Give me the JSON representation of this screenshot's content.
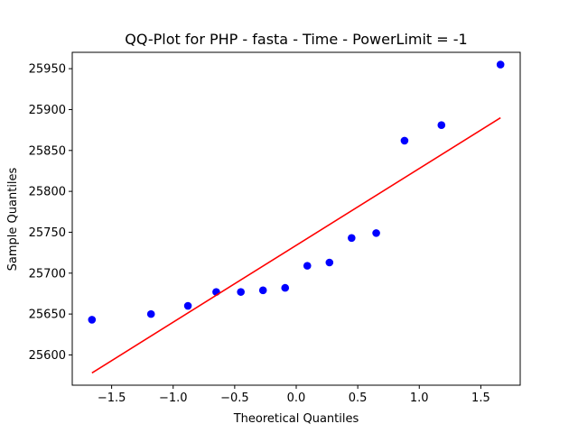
{
  "chart_data": {
    "type": "scatter",
    "title": "QQ-Plot for PHP - fasta - Time - PowerLimit = -1",
    "xlabel": "Theoretical Quantiles",
    "ylabel": "Sample Quantiles",
    "xlim": [
      -1.82,
      1.82
    ],
    "ylim": [
      25563,
      25970
    ],
    "xticks": [
      -1.5,
      -1.0,
      -0.5,
      0.0,
      0.5,
      1.0,
      1.5
    ],
    "xtick_labels": [
      "−1.5",
      "−1.0",
      "−0.5",
      "0.0",
      "0.5",
      "1.0",
      "1.5"
    ],
    "yticks": [
      25600,
      25650,
      25700,
      25750,
      25800,
      25850,
      25900,
      25950
    ],
    "ytick_labels": [
      "25600",
      "25650",
      "25700",
      "25750",
      "25800",
      "25850",
      "25900",
      "25950"
    ],
    "grid": false,
    "points": {
      "color": "#0000ff",
      "x": [
        -1.66,
        -1.18,
        -0.88,
        -0.65,
        -0.45,
        -0.27,
        -0.09,
        0.09,
        0.27,
        0.45,
        0.65,
        0.88,
        1.18,
        1.66
      ],
      "y": [
        25643,
        25650,
        25660,
        25677,
        25677,
        25679,
        25682,
        25709,
        25713,
        25743,
        25749,
        25862,
        25881,
        25955
      ]
    },
    "fit_line": {
      "color": "#ff0000",
      "x": [
        -1.66,
        1.66
      ],
      "y": [
        25578,
        25890
      ]
    }
  }
}
